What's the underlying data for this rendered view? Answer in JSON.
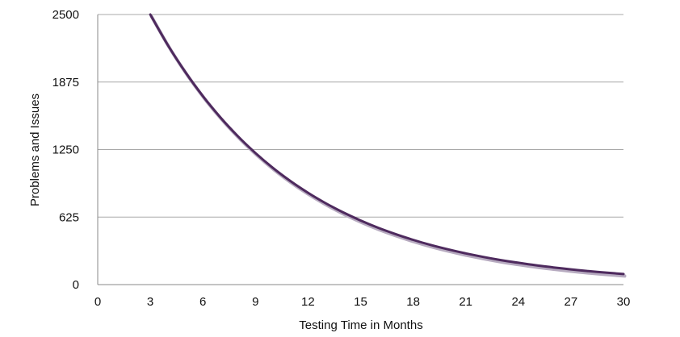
{
  "chart_data": {
    "type": "line",
    "title": "",
    "xlabel": "Testing Time in Months",
    "ylabel": "Problems and Issues",
    "xlim": [
      0,
      30
    ],
    "ylim": [
      0,
      2500
    ],
    "x_ticks": [
      "0",
      "3",
      "6",
      "9",
      "12",
      "15",
      "18",
      "21",
      "24",
      "27",
      "30"
    ],
    "y_ticks": [
      "0",
      "625",
      "1250",
      "1875",
      "2500"
    ],
    "grid": "horizontal",
    "legend": "none",
    "colors": {
      "line": "#4e2a5e",
      "line_shadow": "#b7abc0",
      "grid": "#a8a8a8",
      "axis": "#8a8a8a"
    },
    "series": [
      {
        "x": [
          3,
          4,
          5,
          6,
          7,
          8,
          9,
          10,
          11,
          12,
          13,
          14,
          15,
          16,
          17,
          18,
          19,
          20,
          21,
          22,
          23,
          24,
          25,
          26,
          27,
          28,
          29,
          30
        ],
        "values": [
          2500,
          2217,
          1967,
          1745,
          1548,
          1373,
          1218,
          1080,
          958,
          850,
          754,
          669,
          593,
          526,
          467,
          414,
          367,
          326,
          289,
          256,
          227,
          202,
          179,
          159,
          141,
          125,
          111,
          98
        ]
      }
    ]
  }
}
